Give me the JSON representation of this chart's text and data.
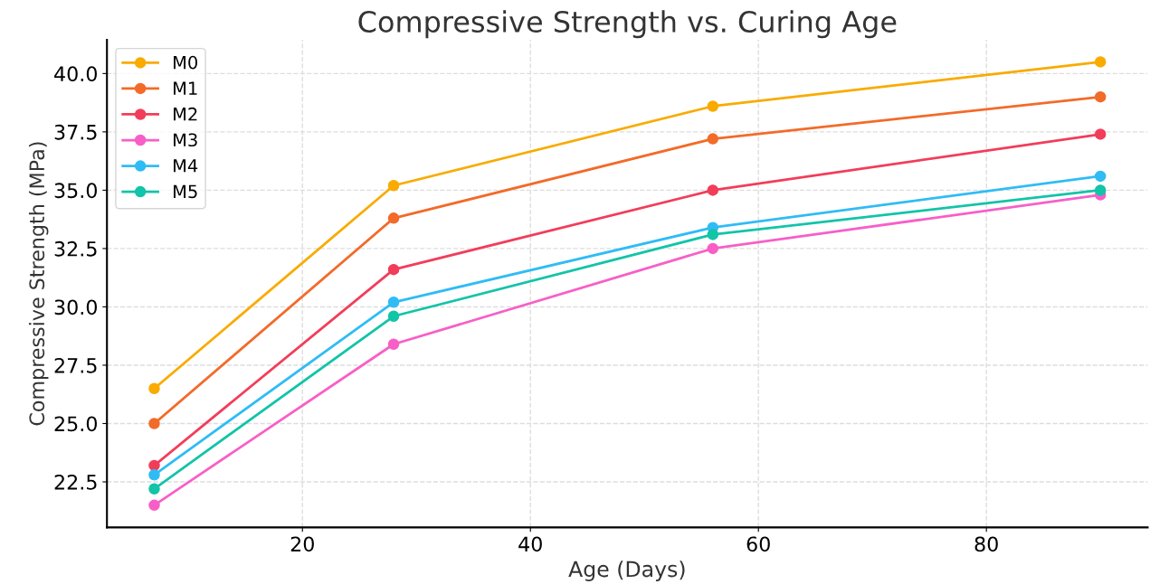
{
  "chart_data": {
    "type": "line",
    "title": "Compressive Strength vs. Curing Age",
    "xlabel": "Age (Days)",
    "ylabel": "Compressive Strength (MPa)",
    "x": [
      7,
      28,
      56,
      90
    ],
    "series": [
      {
        "name": "M0",
        "color": "#f9ab00",
        "values": [
          26.5,
          35.2,
          38.6,
          40.5
        ]
      },
      {
        "name": "M1",
        "color": "#f26b29",
        "values": [
          25.0,
          33.8,
          37.2,
          39.0
        ]
      },
      {
        "name": "M2",
        "color": "#f23d5a",
        "values": [
          23.2,
          31.6,
          35.0,
          37.4
        ]
      },
      {
        "name": "M3",
        "color": "#f75fc7",
        "values": [
          21.5,
          28.4,
          32.5,
          34.8
        ]
      },
      {
        "name": "M4",
        "color": "#2fbcf5",
        "values": [
          22.8,
          30.2,
          33.4,
          35.6
        ]
      },
      {
        "name": "M5",
        "color": "#12c4a8",
        "values": [
          22.2,
          29.6,
          33.1,
          35.0
        ]
      }
    ],
    "xlim": [
      2.85,
      94.15
    ],
    "xticks": [
      20,
      40,
      60,
      80
    ],
    "ylim": [
      20.55,
      41.45
    ],
    "yticks": [
      22.5,
      {
        "value": 25,
        "label": "25.0"
      },
      27.5,
      {
        "value": 30,
        "label": "30.0"
      },
      32.5,
      {
        "value": 35,
        "label": "35.0"
      },
      37.5,
      {
        "value": 40,
        "label": "40.0"
      }
    ],
    "grid": true,
    "legend": "top left",
    "marker": "circle",
    "line_style": "solid"
  }
}
